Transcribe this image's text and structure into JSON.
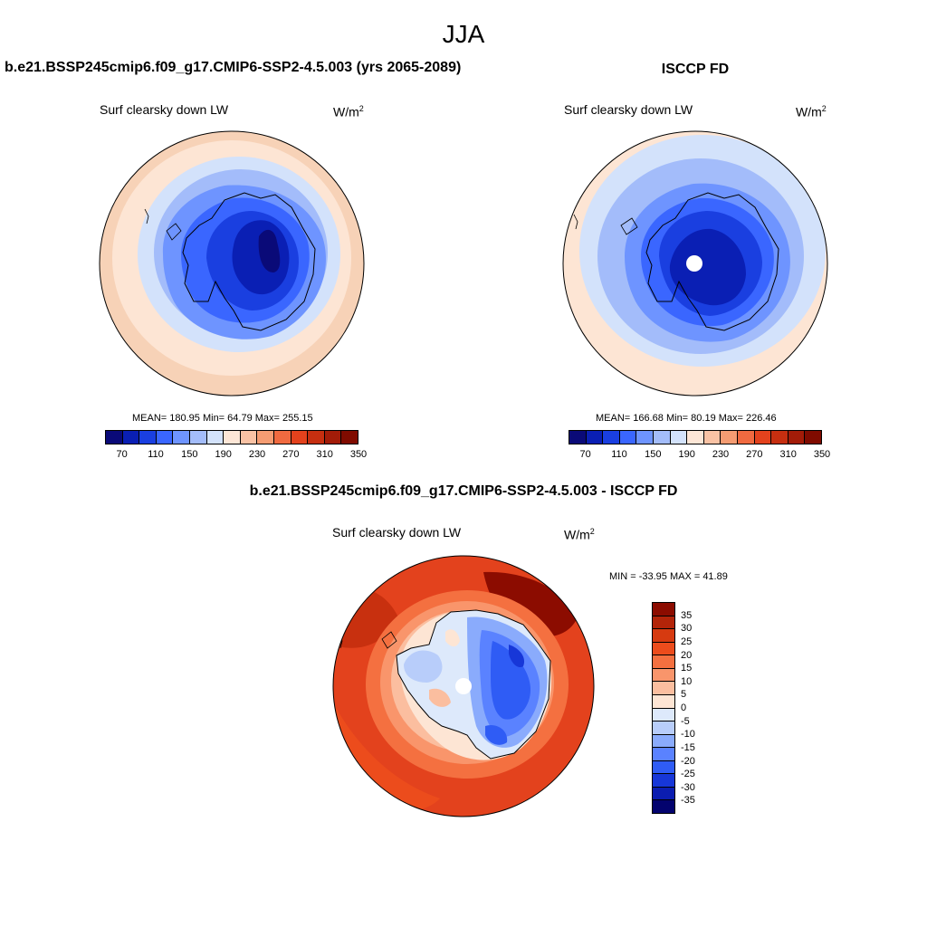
{
  "season": "JJA",
  "panels": {
    "model": {
      "title": "b.e21.BSSP245cmip6.f09_g17.CMIP6-SSP2-4.5.003 (yrs 2065-2089)",
      "field": "Surf clearsky down LW",
      "units_base": "W/m",
      "units_exp": "2",
      "stats": "MEAN= 180.95  Min=  64.79  Max= 255.15"
    },
    "obs": {
      "title": "ISCCP FD",
      "field": "Surf clearsky down LW",
      "units_base": "W/m",
      "units_exp": "2",
      "stats": "MEAN= 166.68  Min=  80.19  Max= 226.46"
    },
    "diff": {
      "title": "b.e21.BSSP245cmip6.f09_g17.CMIP6-SSP2-4.5.003 - ISCCP FD",
      "field": "Surf clearsky down LW",
      "units_base": "W/m",
      "units_exp": "2",
      "stats": "MIN = -33.95 MAX =  41.89"
    }
  },
  "colorbars": {
    "absolute": {
      "labels": [
        "70",
        "110",
        "150",
        "190",
        "230",
        "270",
        "310",
        "350"
      ],
      "colors": [
        "#0a0a78",
        "#0a1fb4",
        "#1a3fe0",
        "#3a66ff",
        "#6e94ff",
        "#a3bcfa",
        "#d3e2fb",
        "#fde6d6",
        "#f9c2a4",
        "#f59c72",
        "#f06a40",
        "#e3421d",
        "#c62f10",
        "#a31c08",
        "#800b00"
      ]
    },
    "difference": {
      "labels": [
        "35",
        "30",
        "25",
        "20",
        "15",
        "10",
        "5",
        "0",
        "-5",
        "-10",
        "-15",
        "-20",
        "-25",
        "-30",
        "-35"
      ],
      "colors": [
        "#8c0c00",
        "#b32409",
        "#d63a10",
        "#ec4c1c",
        "#f47040",
        "#f9956b",
        "#fbbe9f",
        "#fde5d4",
        "#dde9fb",
        "#b8cdfa",
        "#8aabfc",
        "#5a82ff",
        "#2f5cf5",
        "#1737d8",
        "#0b1db0",
        "#03036e"
      ]
    }
  }
}
